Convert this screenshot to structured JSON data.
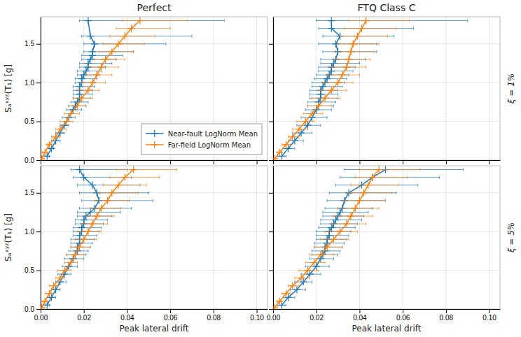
{
  "chart_data": [
    {
      "type": "line",
      "title": "Perfect",
      "ylabel": "Sₐˣʸᶻ(T₁) [g]",
      "xlim": [
        0.0,
        0.105
      ],
      "ylim": [
        0.0,
        1.85
      ],
      "xticks": [
        {
          "value": 0.0,
          "label": "0.00"
        },
        0.02,
        0.04,
        0.06,
        0.08,
        {
          "value": 0.1,
          "label": "0.10"
        }
      ],
      "yticks": [
        {
          "value": 0.0,
          "label": "0.0"
        },
        0.5,
        {
          "value": 1.0,
          "label": "1.0"
        },
        1.5
      ],
      "grid": true,
      "legend": "lower right",
      "tick_labels": "y",
      "series": [
        {
          "name": "Near-fault LogNorm Mean",
          "marker": "plus",
          "values": [
            0.05,
            0.15,
            0.25,
            0.35,
            0.45,
            0.55,
            0.65,
            0.7,
            0.75,
            0.8,
            0.85,
            0.9,
            0.95,
            1.0,
            1.05,
            1.1,
            1.15,
            1.2,
            1.25,
            1.3,
            1.35,
            1.4,
            1.5,
            1.6,
            1.8
          ],
          "x": [
            0.003,
            0.005,
            0.007,
            0.009,
            0.011,
            0.013,
            0.015,
            0.016,
            0.017,
            0.018,
            0.018,
            0.018,
            0.018,
            0.019,
            0.019,
            0.02,
            0.021,
            0.022,
            0.022,
            0.023,
            0.024,
            0.024,
            0.025,
            0.023,
            0.022
          ],
          "x_low": [
            0.002,
            0.004,
            0.005,
            0.007,
            0.009,
            0.01,
            0.012,
            0.013,
            0.014,
            0.015,
            0.015,
            0.015,
            0.015,
            0.016,
            0.016,
            0.017,
            0.017,
            0.018,
            0.018,
            0.019,
            0.019,
            0.02,
            0.02,
            0.019,
            0.018
          ],
          "x_high": [
            0.004,
            0.006,
            0.009,
            0.011,
            0.013,
            0.016,
            0.019,
            0.021,
            0.022,
            0.023,
            0.024,
            0.024,
            0.025,
            0.025,
            0.026,
            0.027,
            0.028,
            0.03,
            0.033,
            0.035,
            0.038,
            0.043,
            0.058,
            0.07,
            0.085
          ]
        },
        {
          "name": "Far-field LogNorm Mean",
          "marker": "plus",
          "values": [
            0.02,
            0.1,
            0.2,
            0.3,
            0.4,
            0.5,
            0.6,
            0.7,
            0.8,
            0.9,
            1.0,
            1.1,
            1.2,
            1.3,
            1.4,
            1.5,
            1.6,
            1.7,
            1.8
          ],
          "x": [
            0.0005,
            0.002,
            0.004,
            0.007,
            0.009,
            0.012,
            0.014,
            0.017,
            0.019,
            0.022,
            0.024,
            0.026,
            0.028,
            0.03,
            0.033,
            0.036,
            0.039,
            0.042,
            0.046
          ],
          "x_low": [
            0.0003,
            0.001,
            0.003,
            0.005,
            0.007,
            0.009,
            0.011,
            0.013,
            0.015,
            0.017,
            0.019,
            0.021,
            0.023,
            0.025,
            0.027,
            0.029,
            0.032,
            0.035,
            0.038
          ],
          "x_high": [
            0.001,
            0.003,
            0.005,
            0.009,
            0.012,
            0.015,
            0.018,
            0.021,
            0.024,
            0.027,
            0.03,
            0.033,
            0.036,
            0.039,
            0.043,
            0.048,
            0.053,
            0.06,
            0.068
          ]
        }
      ]
    },
    {
      "type": "line",
      "title": "FTQ Class C",
      "annotations": [
        "ξ = 1%"
      ],
      "xlim": [
        0.0,
        0.105
      ],
      "ylim": [
        0.0,
        1.85
      ],
      "xticks": [
        {
          "value": 0.0,
          "label": "0.00"
        },
        0.02,
        0.04,
        0.06,
        0.08,
        {
          "value": 0.1,
          "label": "0.10"
        }
      ],
      "yticks": [
        {
          "value": 0.0,
          "label": "0.0"
        },
        0.5,
        {
          "value": 1.0,
          "label": "1.0"
        },
        1.5
      ],
      "grid": true,
      "tick_labels": false,
      "series": [
        {
          "marker": "plus",
          "values": [
            0.05,
            0.15,
            0.25,
            0.35,
            0.45,
            0.55,
            0.65,
            0.7,
            0.75,
            0.8,
            0.85,
            0.9,
            0.95,
            1.0,
            1.05,
            1.1,
            1.15,
            1.2,
            1.25,
            1.3,
            1.4,
            1.5,
            1.6,
            1.7,
            1.8
          ],
          "x": [
            0.004,
            0.007,
            0.01,
            0.013,
            0.016,
            0.018,
            0.02,
            0.021,
            0.021,
            0.022,
            0.022,
            0.022,
            0.023,
            0.024,
            0.025,
            0.026,
            0.027,
            0.027,
            0.028,
            0.029,
            0.03,
            0.029,
            0.031,
            0.027,
            0.027
          ],
          "x_low": [
            0.002,
            0.005,
            0.007,
            0.009,
            0.011,
            0.013,
            0.015,
            0.016,
            0.016,
            0.017,
            0.017,
            0.017,
            0.018,
            0.018,
            0.019,
            0.02,
            0.021,
            0.021,
            0.022,
            0.022,
            0.023,
            0.021,
            0.023,
            0.021,
            0.02
          ],
          "x_high": [
            0.006,
            0.01,
            0.014,
            0.018,
            0.022,
            0.025,
            0.027,
            0.028,
            0.029,
            0.03,
            0.03,
            0.03,
            0.032,
            0.033,
            0.034,
            0.035,
            0.037,
            0.038,
            0.04,
            0.043,
            0.048,
            0.048,
            0.056,
            0.065,
            0.09
          ]
        },
        {
          "marker": "plus",
          "values": [
            0.02,
            0.1,
            0.2,
            0.3,
            0.4,
            0.5,
            0.6,
            0.7,
            0.8,
            0.9,
            1.0,
            1.1,
            1.2,
            1.3,
            1.4,
            1.5,
            1.6,
            1.7,
            1.8
          ],
          "x": [
            0.0007,
            0.003,
            0.006,
            0.009,
            0.012,
            0.015,
            0.018,
            0.021,
            0.024,
            0.027,
            0.03,
            0.032,
            0.034,
            0.035,
            0.036,
            0.037,
            0.039,
            0.041,
            0.043
          ],
          "x_low": [
            0.0004,
            0.002,
            0.004,
            0.007,
            0.009,
            0.011,
            0.014,
            0.016,
            0.018,
            0.021,
            0.023,
            0.025,
            0.027,
            0.028,
            0.029,
            0.03,
            0.031,
            0.033,
            0.035
          ],
          "x_high": [
            0.001,
            0.004,
            0.008,
            0.012,
            0.016,
            0.019,
            0.023,
            0.027,
            0.031,
            0.034,
            0.037,
            0.04,
            0.043,
            0.045,
            0.047,
            0.049,
            0.053,
            0.057,
            0.063
          ]
        }
      ]
    },
    {
      "type": "line",
      "xlabel": "Peak lateral drift",
      "ylabel": "Sₐˣʸᶻ(T₁) [g]",
      "xlim": [
        0.0,
        0.105
      ],
      "ylim": [
        0.0,
        1.85
      ],
      "xticks": [
        {
          "value": 0.0,
          "label": "0.00"
        },
        0.02,
        0.04,
        0.06,
        0.08,
        {
          "value": 0.1,
          "label": "0.10"
        }
      ],
      "yticks": [
        {
          "value": 0.0,
          "label": "0.0"
        },
        0.5,
        {
          "value": 1.0,
          "label": "1.0"
        },
        1.5
      ],
      "grid": true,
      "series": [
        {
          "marker": "plus",
          "values": [
            0.05,
            0.15,
            0.25,
            0.35,
            0.45,
            0.55,
            0.65,
            0.7,
            0.75,
            0.8,
            0.85,
            0.9,
            0.95,
            1.0,
            1.05,
            1.1,
            1.15,
            1.2,
            1.25,
            1.3,
            1.4,
            1.5,
            1.6,
            1.7,
            1.8
          ],
          "x": [
            0.003,
            0.005,
            0.007,
            0.009,
            0.011,
            0.013,
            0.015,
            0.016,
            0.017,
            0.017,
            0.018,
            0.018,
            0.018,
            0.019,
            0.019,
            0.02,
            0.02,
            0.021,
            0.023,
            0.025,
            0.027,
            0.026,
            0.024,
            0.02,
            0.018
          ],
          "x_low": [
            0.002,
            0.003,
            0.005,
            0.007,
            0.008,
            0.01,
            0.011,
            0.012,
            0.013,
            0.014,
            0.014,
            0.014,
            0.015,
            0.015,
            0.015,
            0.016,
            0.016,
            0.017,
            0.017,
            0.018,
            0.019,
            0.018,
            0.017,
            0.015,
            0.014
          ],
          "x_high": [
            0.004,
            0.007,
            0.009,
            0.012,
            0.014,
            0.017,
            0.02,
            0.021,
            0.022,
            0.023,
            0.024,
            0.025,
            0.026,
            0.027,
            0.028,
            0.029,
            0.031,
            0.033,
            0.037,
            0.042,
            0.052,
            0.05,
            0.046,
            0.042,
            0.04
          ]
        },
        {
          "marker": "plus",
          "values": [
            0.02,
            0.1,
            0.2,
            0.3,
            0.4,
            0.5,
            0.6,
            0.7,
            0.8,
            0.9,
            1.0,
            1.1,
            1.2,
            1.3,
            1.4,
            1.5,
            1.6,
            1.7,
            1.8
          ],
          "x": [
            0.0005,
            0.002,
            0.004,
            0.006,
            0.009,
            0.011,
            0.014,
            0.016,
            0.018,
            0.02,
            0.022,
            0.024,
            0.026,
            0.028,
            0.031,
            0.033,
            0.036,
            0.039,
            0.043
          ],
          "x_low": [
            0.0003,
            0.001,
            0.002,
            0.004,
            0.007,
            0.008,
            0.011,
            0.012,
            0.014,
            0.016,
            0.017,
            0.019,
            0.021,
            0.023,
            0.025,
            0.027,
            0.029,
            0.032,
            0.035
          ],
          "x_high": [
            0.001,
            0.003,
            0.005,
            0.008,
            0.011,
            0.014,
            0.017,
            0.02,
            0.023,
            0.026,
            0.028,
            0.031,
            0.034,
            0.037,
            0.041,
            0.045,
            0.049,
            0.055,
            0.063
          ]
        }
      ]
    },
    {
      "type": "line",
      "xlabel": "Peak lateral drift",
      "annotations": [
        "ξ = 5%"
      ],
      "xlim": [
        0.0,
        0.105
      ],
      "ylim": [
        0.0,
        1.85
      ],
      "xticks": [
        {
          "value": 0.0,
          "label": "0.00"
        },
        0.02,
        0.04,
        0.06,
        0.08,
        {
          "value": 0.1,
          "label": "0.10"
        }
      ],
      "yticks": [
        {
          "value": 0.0,
          "label": "0.0"
        },
        0.5,
        {
          "value": 1.0,
          "label": "1.0"
        },
        1.5
      ],
      "grid": true,
      "tick_labels": "x",
      "series": [
        {
          "marker": "plus",
          "values": [
            0.05,
            0.15,
            0.25,
            0.35,
            0.45,
            0.55,
            0.65,
            0.7,
            0.75,
            0.8,
            0.85,
            0.9,
            0.95,
            1.0,
            1.05,
            1.1,
            1.15,
            1.2,
            1.25,
            1.3,
            1.4,
            1.5,
            1.6,
            1.7,
            1.8
          ],
          "x": [
            0.004,
            0.007,
            0.011,
            0.014,
            0.017,
            0.02,
            0.022,
            0.023,
            0.024,
            0.024,
            0.025,
            0.025,
            0.026,
            0.026,
            0.027,
            0.028,
            0.029,
            0.03,
            0.031,
            0.032,
            0.033,
            0.035,
            0.041,
            0.046,
            0.052
          ],
          "x_low": [
            0.002,
            0.005,
            0.008,
            0.01,
            0.013,
            0.015,
            0.017,
            0.018,
            0.018,
            0.019,
            0.019,
            0.02,
            0.02,
            0.02,
            0.021,
            0.022,
            0.022,
            0.023,
            0.023,
            0.024,
            0.025,
            0.026,
            0.029,
            0.031,
            0.033
          ],
          "x_high": [
            0.006,
            0.01,
            0.015,
            0.018,
            0.022,
            0.026,
            0.028,
            0.03,
            0.031,
            0.032,
            0.033,
            0.034,
            0.035,
            0.036,
            0.038,
            0.039,
            0.041,
            0.042,
            0.044,
            0.046,
            0.052,
            0.057,
            0.067,
            0.077,
            0.088
          ]
        },
        {
          "marker": "plus",
          "values": [
            0.02,
            0.1,
            0.2,
            0.3,
            0.4,
            0.5,
            0.6,
            0.7,
            0.8,
            0.9,
            1.0,
            1.1,
            1.2,
            1.3,
            1.4,
            1.5,
            1.6,
            1.7,
            1.8
          ],
          "x": [
            0.0007,
            0.003,
            0.006,
            0.009,
            0.013,
            0.016,
            0.019,
            0.022,
            0.025,
            0.028,
            0.031,
            0.034,
            0.036,
            0.038,
            0.04,
            0.042,
            0.044,
            0.046,
            0.049
          ],
          "x_low": [
            0.0004,
            0.002,
            0.004,
            0.007,
            0.01,
            0.012,
            0.015,
            0.017,
            0.019,
            0.022,
            0.024,
            0.027,
            0.028,
            0.03,
            0.032,
            0.034,
            0.036,
            0.038,
            0.04
          ],
          "x_high": [
            0.001,
            0.004,
            0.008,
            0.012,
            0.017,
            0.021,
            0.024,
            0.028,
            0.032,
            0.035,
            0.039,
            0.043,
            0.046,
            0.049,
            0.052,
            0.055,
            0.058,
            0.062,
            0.068
          ]
        }
      ]
    }
  ]
}
